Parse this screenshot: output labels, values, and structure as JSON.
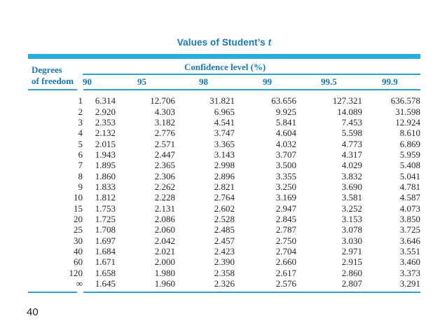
{
  "page": {
    "title_main": "Values of Student’s ",
    "title_var": "t",
    "page_number": "40"
  },
  "table": {
    "group_header": "Confidence level (%)",
    "row_header_line1": "Degrees",
    "row_header_line2": "of freedom",
    "columns": [
      "90",
      "95",
      "98",
      "99",
      "99.5",
      "99.9"
    ],
    "highlight_column": "95",
    "rows": [
      {
        "df": "1",
        "values": [
          "6.314",
          "12.706",
          "31.821",
          "63.656",
          "127.321",
          "636.578"
        ]
      },
      {
        "df": "2",
        "values": [
          "2.920",
          "4.303",
          "6.965",
          "9.925",
          "14.089",
          "31.598"
        ]
      },
      {
        "df": "3",
        "values": [
          "2.353",
          "3.182",
          "4.541",
          "5.841",
          "7.453",
          "12.924"
        ]
      },
      {
        "df": "4",
        "values": [
          "2.132",
          "2.776",
          "3.747",
          "4.604",
          "5.598",
          "8.610"
        ]
      },
      {
        "df": "5",
        "values": [
          "2.015",
          "2.571",
          "3.365",
          "4.032",
          "4.773",
          "6.869"
        ]
      },
      {
        "df": "6",
        "values": [
          "1.943",
          "2.447",
          "3.143",
          "3.707",
          "4.317",
          "5.959"
        ]
      },
      {
        "df": "7",
        "values": [
          "1.895",
          "2.365",
          "2.998",
          "3.500",
          "4.029",
          "5.408"
        ]
      },
      {
        "df": "8",
        "values": [
          "1.860",
          "2.306",
          "2.896",
          "3.355",
          "3.832",
          "5.041"
        ]
      },
      {
        "df": "9",
        "values": [
          "1.833",
          "2.262",
          "2.821",
          "3.250",
          "3.690",
          "4.781"
        ]
      },
      {
        "df": "10",
        "values": [
          "1.812",
          "2.228",
          "2.764",
          "3.169",
          "3.581",
          "4.587"
        ]
      },
      {
        "df": "15",
        "values": [
          "1.753",
          "2.131",
          "2.602",
          "2.947",
          "3.252",
          "4.073"
        ]
      },
      {
        "df": "20",
        "values": [
          "1.725",
          "2.086",
          "2.528",
          "2.845",
          "3.153",
          "3.850"
        ]
      },
      {
        "df": "25",
        "values": [
          "1.708",
          "2.060",
          "2.485",
          "2.787",
          "3.078",
          "3.725"
        ]
      },
      {
        "df": "30",
        "values": [
          "1.697",
          "2.042",
          "2.457",
          "2.750",
          "3.030",
          "3.646"
        ]
      },
      {
        "df": "40",
        "values": [
          "1.684",
          "2.021",
          "2.423",
          "2.704",
          "2.971",
          "3.551"
        ]
      },
      {
        "df": "60",
        "values": [
          "1.671",
          "2.000",
          "2.390",
          "2.660",
          "2.915",
          "3.460"
        ]
      },
      {
        "df": "120",
        "values": [
          "1.658",
          "1.980",
          "2.358",
          "2.617",
          "2.860",
          "3.373"
        ]
      },
      {
        "df": "∞",
        "values": [
          "1.645",
          "1.960",
          "2.326",
          "2.576",
          "2.807",
          "3.291"
        ]
      }
    ]
  },
  "colors": {
    "accent_blue": "#1678b8",
    "bar_cyan": "#29abe2",
    "rule_blue": "#2f9fd6",
    "highlight_blue": "#4aa5d8",
    "text_dark": "#262626"
  }
}
